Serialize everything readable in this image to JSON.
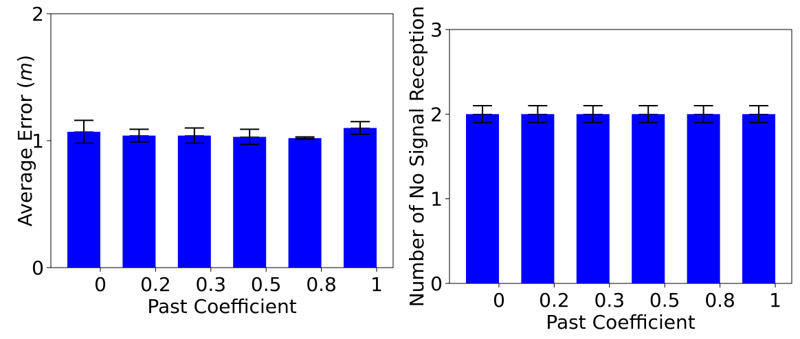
{
  "chart_data": [
    {
      "type": "bar",
      "categories": [
        "0",
        "0.2",
        "0.3",
        "0.5",
        "0.8",
        "1"
      ],
      "values": [
        1.07,
        1.04,
        1.04,
        1.03,
        1.02,
        1.1
      ],
      "errors": [
        0.09,
        0.05,
        0.06,
        0.06,
        0.01,
        0.05
      ],
      "xlabel": "Past Coefficient",
      "ylabel": "Average Error (",
      "ylabel_unit": "m",
      "ylabel_close": ")",
      "ylim": [
        0,
        2
      ],
      "yticks": [
        "0",
        "1",
        "2"
      ],
      "grid": false,
      "bar_color": "#0000ff",
      "error_color": "#000000"
    },
    {
      "type": "bar",
      "categories": [
        "0",
        "0.2",
        "0.3",
        "0.5",
        "0.8",
        "1"
      ],
      "values": [
        2,
        2,
        2,
        2,
        2,
        2
      ],
      "errors": [
        0.1,
        0.1,
        0.1,
        0.1,
        0.1,
        0.1
      ],
      "xlabel": "Past Coefficient",
      "ylabel": "Number of No Signal Reception",
      "ylim": [
        0,
        3
      ],
      "yticks": [
        "0",
        "1",
        "2",
        "3"
      ],
      "grid": false,
      "bar_color": "#0000ff",
      "error_color": "#000000"
    }
  ]
}
